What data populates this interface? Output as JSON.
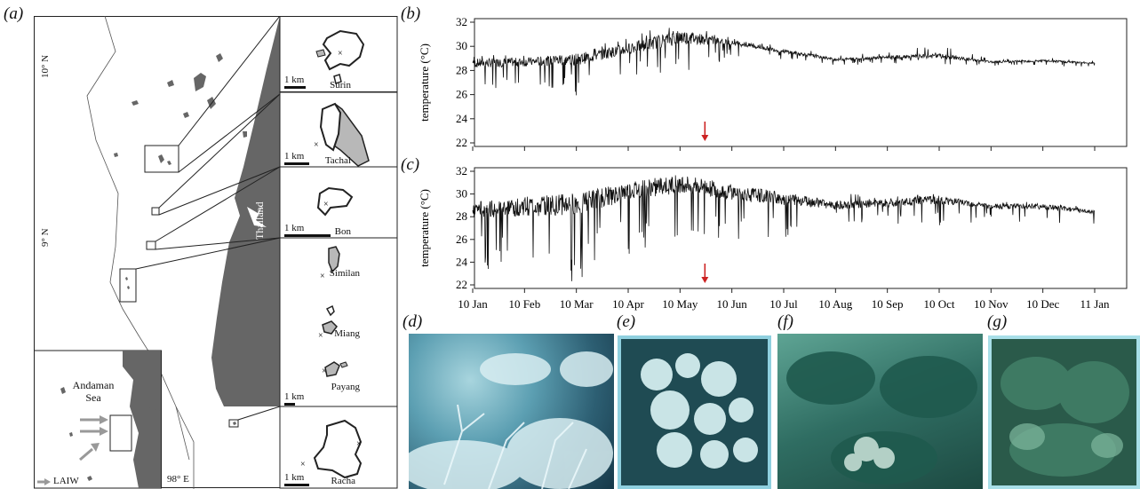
{
  "panels": {
    "a": "(a)",
    "b": "(b)",
    "c": "(c)",
    "d": "(d)",
    "e": "(e)",
    "f": "(f)",
    "g": "(g)"
  },
  "map": {
    "lat_10": "10° N",
    "lat_9": "9° N",
    "lon_98": "98° E",
    "country": "Thailand",
    "sea": "Andaman Sea",
    "laiw": "LAIW",
    "islands": [
      {
        "name": "Surin",
        "scale": "1 km"
      },
      {
        "name": "Tachai",
        "scale": "1 km"
      },
      {
        "name": "Bon",
        "scale": "1 km"
      },
      {
        "name": "Similan",
        "scale": ""
      },
      {
        "name": "Miang",
        "scale": ""
      },
      {
        "name": "Payang",
        "scale": "1 km"
      },
      {
        "name": "Racha",
        "scale": "1 km"
      }
    ],
    "colors": {
      "land": "#666666",
      "reef": "#b8b8b8",
      "laiw_arrow": "#999999"
    }
  },
  "chart_data": [
    {
      "type": "line",
      "panel": "(b)",
      "ylabel": "temperature (°C)",
      "ylim": [
        22,
        32
      ],
      "yticks": [
        22,
        24,
        26,
        28,
        30,
        32
      ],
      "xticks": [
        "10 Jan",
        "10 Feb",
        "10 Mar",
        "10 Apr",
        "10 May",
        "10 Jun",
        "10 Jul",
        "10 Aug",
        "10 Sep",
        "10 Oct",
        "10 Nov",
        "10 Dec",
        "11 Jan"
      ],
      "series_monthly_mean": [
        28.6,
        28.7,
        28.9,
        29.8,
        30.8,
        30.3,
        29.6,
        28.9,
        29.1,
        29.2,
        28.7,
        28.8,
        28.6
      ],
      "series_monthly_min": [
        26.2,
        26.5,
        25.9,
        27.4,
        27.0,
        29.2,
        28.9,
        28.4,
        28.6,
        28.5,
        28.4,
        28.3,
        28.2
      ],
      "series_monthly_max": [
        29.2,
        29.4,
        29.8,
        30.9,
        32.1,
        30.8,
        30.2,
        29.2,
        29.6,
        30.1,
        29.0,
        29.1,
        28.8
      ],
      "arrow_at": "25 May",
      "arrow_color": "#cc2222"
    },
    {
      "type": "line",
      "panel": "(c)",
      "ylabel": "temperature (°C)",
      "ylim": [
        22,
        32
      ],
      "yticks": [
        22,
        24,
        26,
        28,
        30,
        32
      ],
      "xticks": [
        "10 Jan",
        "10 Feb",
        "10 Mar",
        "10 Apr",
        "10 May",
        "10 Jun",
        "10 Jul",
        "10 Aug",
        "10 Sep",
        "10 Oct",
        "10 Nov",
        "10 Dec",
        "11 Jan"
      ],
      "series_monthly_mean": [
        28.6,
        28.9,
        29.1,
        30.2,
        30.9,
        30.1,
        29.6,
        29.0,
        29.2,
        29.5,
        28.9,
        28.9,
        28.4
      ],
      "series_monthly_min": [
        23.5,
        22.5,
        22.3,
        24.5,
        25.2,
        25.7,
        25.6,
        27.5,
        27.3,
        27.0,
        27.6,
        27.3,
        27.4
      ],
      "series_monthly_max": [
        29.0,
        29.6,
        30.0,
        31.0,
        31.8,
        31.0,
        30.2,
        30.3,
        29.8,
        30.1,
        29.3,
        29.4,
        28.7
      ],
      "arrow_at": "25 May",
      "arrow_color": "#cc2222"
    }
  ],
  "photos": {
    "d": {
      "desc_color": "#6aa7b8"
    },
    "e": {
      "desc_color": "#8cc0cc"
    },
    "f": {
      "desc_color": "#4f8f86"
    },
    "g": {
      "desc_color": "#3f7767"
    }
  }
}
